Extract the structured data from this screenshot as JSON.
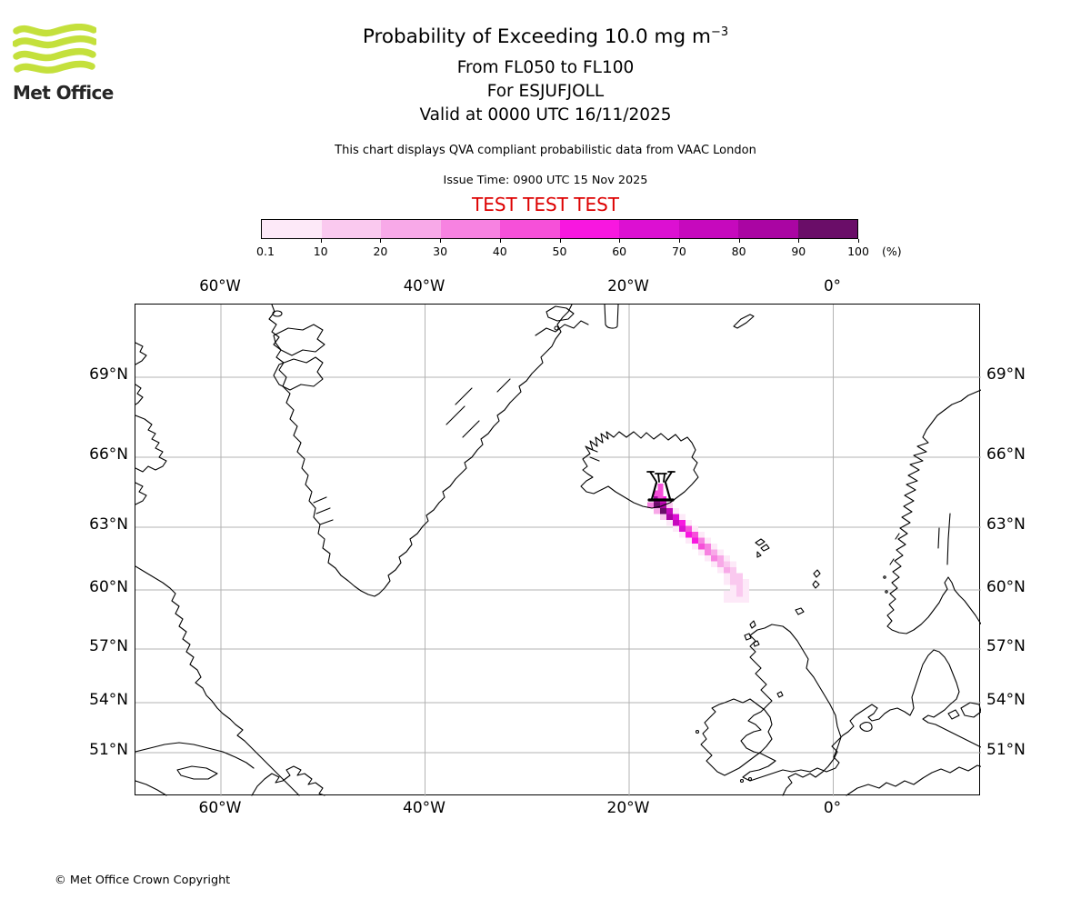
{
  "header": {
    "logo_text": "Met Office",
    "logo_green": "#c4e03c",
    "title_main": "Probability of Exceeding 10.0 mg m",
    "title_sup": "−3",
    "subtitle_fl": "From FL050 to FL100",
    "subtitle_volcano": "For ESJUFJOLL",
    "subtitle_valid": "Valid at 0000 UTC 16/11/2025",
    "note": "This chart displays QVA compliant probabilistic data from VAAC London",
    "issue_time": "Issue Time: 0900 UTC 15 Nov 2025",
    "test_banner": "TEST TEST TEST",
    "test_color": "#dd0000"
  },
  "colorbar": {
    "labels": [
      "0.1",
      "10",
      "20",
      "30",
      "40",
      "50",
      "60",
      "70",
      "80",
      "90",
      "100"
    ],
    "unit": "(%)",
    "colors": [
      "#fde9f8",
      "#fac9ef",
      "#f8a9e8",
      "#f782e1",
      "#f650d9",
      "#f817e0",
      "#dc10d2",
      "#c609bd",
      "#aa05a3",
      "#6a0d68"
    ]
  },
  "map": {
    "top_labels": [
      "60°W",
      "40°W",
      "20°W",
      "0°"
    ],
    "bottom_labels": [
      "60°W",
      "40°W",
      "20°W",
      "0°"
    ],
    "left_labels": [
      "69°N",
      "66°N",
      "63°N",
      "60°N",
      "57°N",
      "54°N",
      "51°N"
    ],
    "right_labels": [
      "69°N",
      "66°N",
      "63°N",
      "60°N",
      "57°N",
      "54°N",
      "51°N"
    ]
  },
  "footer": {
    "copyright": "© Met Office Crown Copyright"
  },
  "chart_data": {
    "type": "heatmap",
    "title": "Probability of Exceeding 10.0 mg m^-3",
    "layer": "FL050 to FL100",
    "volcano": "ESJUFJOLL",
    "valid_time": "0000 UTC 16/11/2025",
    "issue_time": "0900 UTC 15 Nov 2025",
    "source": "VAAC London",
    "unit": "%",
    "probability_bins": [
      0.1,
      10,
      20,
      30,
      40,
      50,
      60,
      70,
      80,
      90,
      100
    ],
    "bin_colors": [
      "#fde9f8",
      "#fac9ef",
      "#f8a9e8",
      "#f782e1",
      "#f650d9",
      "#f817e0",
      "#dc10d2",
      "#c609bd",
      "#aa05a3",
      "#6a0d68"
    ],
    "x_axis": {
      "ticks": [
        "60°W",
        "40°W",
        "20°W",
        "0°"
      ],
      "gridlines": true
    },
    "y_axis": {
      "ticks": [
        "69°N",
        "66°N",
        "63°N",
        "60°N",
        "57°N",
        "54°N",
        "51°N"
      ],
      "gridlines": true
    },
    "plume": {
      "description": "Ash plume extends southeast from ESJUFJOLL (SE Iceland, ~64.4N 16.8W) to ~59.8N 8W; probability >90% at source decreasing to <10% at the far end",
      "cells": [
        [
          2,
          -1,
          5
        ],
        [
          2,
          0,
          9
        ],
        [
          3,
          0,
          6
        ],
        [
          1,
          1,
          4
        ],
        [
          2,
          1,
          10
        ],
        [
          3,
          1,
          9
        ],
        [
          4,
          1,
          2
        ],
        [
          2,
          2,
          3
        ],
        [
          3,
          2,
          10
        ],
        [
          4,
          2,
          8
        ],
        [
          5,
          2,
          1
        ],
        [
          3,
          3,
          2
        ],
        [
          4,
          3,
          9
        ],
        [
          5,
          3,
          7
        ],
        [
          6,
          3,
          1
        ],
        [
          4,
          4,
          1
        ],
        [
          5,
          4,
          8
        ],
        [
          6,
          4,
          6
        ],
        [
          7,
          4,
          1
        ],
        [
          5,
          5,
          1
        ],
        [
          6,
          5,
          7
        ],
        [
          7,
          5,
          5
        ],
        [
          8,
          5,
          1
        ],
        [
          6,
          6,
          1
        ],
        [
          7,
          6,
          6
        ],
        [
          8,
          6,
          5
        ],
        [
          9,
          6,
          1
        ],
        [
          7,
          7,
          1
        ],
        [
          8,
          7,
          6
        ],
        [
          9,
          7,
          4
        ],
        [
          10,
          7,
          1
        ],
        [
          8,
          8,
          1
        ],
        [
          9,
          8,
          5
        ],
        [
          10,
          8,
          4
        ],
        [
          11,
          8,
          1
        ],
        [
          9,
          9,
          1
        ],
        [
          10,
          9,
          4
        ],
        [
          11,
          9,
          3
        ],
        [
          12,
          9,
          1
        ],
        [
          10,
          10,
          1
        ],
        [
          11,
          10,
          4
        ],
        [
          12,
          10,
          3
        ],
        [
          13,
          10,
          1
        ],
        [
          11,
          11,
          1
        ],
        [
          12,
          11,
          3
        ],
        [
          13,
          11,
          2
        ],
        [
          14,
          11,
          1
        ],
        [
          12,
          12,
          1
        ],
        [
          13,
          12,
          3
        ],
        [
          14,
          12,
          2
        ],
        [
          13,
          13,
          1
        ],
        [
          14,
          13,
          2
        ],
        [
          15,
          13,
          2
        ],
        [
          13,
          14,
          1
        ],
        [
          14,
          14,
          2
        ],
        [
          15,
          14,
          2
        ],
        [
          16,
          14,
          1
        ],
        [
          14,
          15,
          1
        ],
        [
          15,
          15,
          2
        ],
        [
          16,
          15,
          1
        ],
        [
          13,
          16,
          1
        ],
        [
          14,
          16,
          1
        ],
        [
          15,
          16,
          2
        ],
        [
          16,
          16,
          1
        ],
        [
          13,
          17,
          1
        ],
        [
          14,
          17,
          1
        ],
        [
          15,
          17,
          1
        ],
        [
          16,
          17,
          1
        ]
      ]
    }
  }
}
